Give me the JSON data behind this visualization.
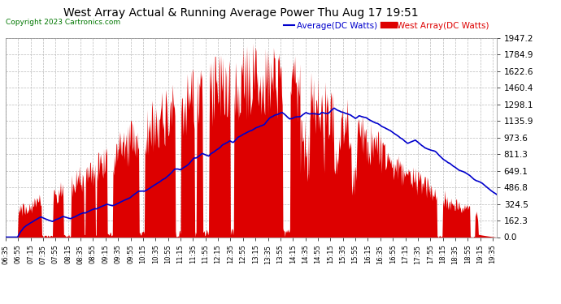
{
  "title": "West Array Actual & Running Average Power Thu Aug 17 19:51",
  "copyright": "Copyright 2023 Cartronics.com",
  "legend_avg": "Average(DC Watts)",
  "legend_west": "West Array(DC Watts)",
  "yticks": [
    0.0,
    162.3,
    324.5,
    486.8,
    649.1,
    811.3,
    973.6,
    1135.9,
    1298.1,
    1460.4,
    1622.6,
    1784.9,
    1947.2
  ],
  "ymax": 1947.2,
  "ymin": 0.0,
  "bg_color": "#ffffff",
  "grid_color": "#cccccc",
  "bar_color": "#dd0000",
  "avg_color": "#0000cc",
  "title_color": "#000000",
  "copyright_color": "#007700",
  "legend_avg_color": "#0000ff",
  "legend_west_color": "#cc0000"
}
